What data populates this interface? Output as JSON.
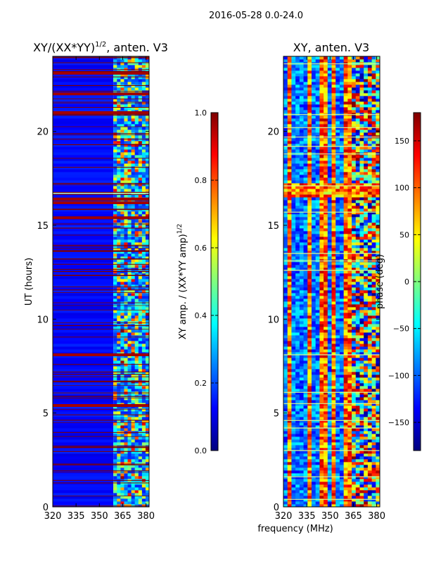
{
  "figure": {
    "suptitle": "2016-05-28 0.0-24.0",
    "shared_xlabel": "frequency (MHz)"
  },
  "colors": {
    "jet": [
      "#00007f",
      "#0000ff",
      "#007fff",
      "#00ffff",
      "#7fff7f",
      "#ffff00",
      "#ff7f00",
      "#ff0000",
      "#7f0000"
    ],
    "glitch_line": "#7f0000",
    "bright_line": "#d8ff8f"
  },
  "chart_data": [
    {
      "type": "heatmap",
      "title_prefix": "XY/(XX*YY)",
      "title_exp": "1/2",
      "title_suffix": ", anten. V3",
      "xlabel": "",
      "ylabel": "UT (hours)",
      "xlim": [
        320,
        382
      ],
      "ylim": [
        0,
        24
      ],
      "xticks": [
        320,
        335,
        350,
        365,
        380
      ],
      "yticks": [
        0,
        5,
        10,
        15,
        20
      ],
      "colorbar": {
        "label_prefix": "XY amp. / (XX*YY amp)",
        "label_exp": "1/2",
        "range": [
          0.0,
          1.0
        ],
        "ticks": [
          "0.0",
          "0.2",
          "0.4",
          "0.6",
          "0.8",
          "1.0"
        ],
        "tick_values": [
          0.0,
          0.2,
          0.4,
          0.6,
          0.8,
          1.0
        ]
      },
      "quiet_band_mhz": [
        320,
        359
      ],
      "active_band_mhz": [
        359,
        382
      ],
      "background_value": 0.1,
      "hot_hours": [
        5.4,
        8.1,
        15.4,
        16.2,
        16.4,
        21.0,
        22.0,
        23.1
      ],
      "bright_lines_hours": [
        16.7
      ]
    },
    {
      "type": "heatmap",
      "title": "XY, anten. V3",
      "xlabel": "frequency (MHz)",
      "ylabel": "",
      "xlim": [
        320,
        382
      ],
      "ylim": [
        0,
        24
      ],
      "xticks": [
        320,
        335,
        350,
        365,
        380
      ],
      "yticks": [
        0,
        5,
        10,
        15,
        20
      ],
      "colorbar": {
        "label": "phase (deg)",
        "range": [
          -180,
          180
        ],
        "ticks": [
          "−150",
          "−100",
          "−50",
          "0",
          "50",
          "100",
          "150"
        ],
        "tick_values": [
          -150,
          -100,
          -50,
          0,
          50,
          100,
          150
        ]
      },
      "vertical_stripes_mhz": [
        324,
        336,
        337,
        346,
        353,
        360,
        362
      ],
      "band_16h": [
        16.5,
        17.1
      ],
      "bright_lines_hours": [
        0.4,
        1.6,
        3.0,
        4.2,
        4.6,
        5.5,
        6.1,
        8.1,
        12.6,
        13.1,
        13.5,
        15.7,
        17.1,
        18.8,
        19.2,
        19.7,
        20.2,
        20.9,
        23.6
      ]
    }
  ]
}
